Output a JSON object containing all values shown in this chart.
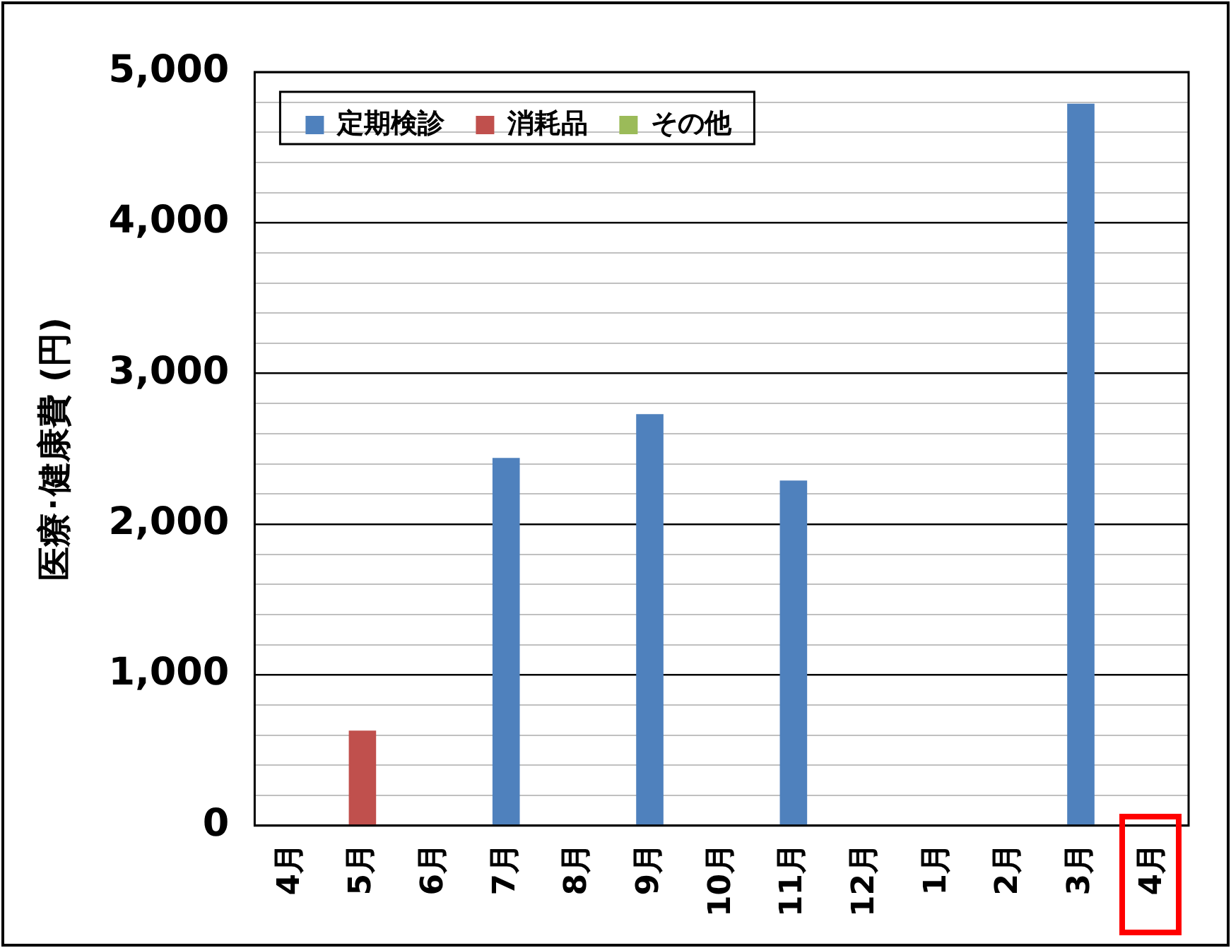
{
  "chart_data": {
    "type": "bar",
    "ylabel": "医療･健康費 (円)",
    "categories": [
      "4月",
      "5月",
      "6月",
      "7月",
      "8月",
      "9月",
      "10月",
      "11月",
      "12月",
      "1月",
      "2月",
      "3月",
      "4月"
    ],
    "series": [
      {
        "name": "定期検診",
        "color": "#4f81bd",
        "values": [
          null,
          null,
          null,
          2440,
          null,
          2730,
          null,
          2290,
          null,
          null,
          null,
          4790,
          null
        ]
      },
      {
        "name": "消耗品",
        "color": "#c0504d",
        "values": [
          null,
          630,
          null,
          null,
          null,
          null,
          null,
          null,
          null,
          null,
          null,
          null,
          null
        ]
      },
      {
        "name": "その他",
        "color": "#9bbb59",
        "values": [
          null,
          null,
          null,
          null,
          null,
          null,
          null,
          null,
          null,
          null,
          null,
          null,
          null
        ]
      }
    ],
    "stacked": true,
    "ylim": [
      0,
      5000
    ],
    "yticks": [
      0,
      {
        "value": 200,
        "label": null
      },
      {
        "value": 400,
        "label": null
      },
      {
        "value": 600,
        "label": null
      },
      {
        "value": 800,
        "label": null
      },
      {
        "value": 1000,
        "label": "1,000"
      },
      {
        "value": 1200,
        "label": null
      },
      {
        "value": 1400,
        "label": null
      },
      {
        "value": 1600,
        "label": null
      },
      {
        "value": 1800,
        "label": null
      },
      {
        "value": 2000,
        "label": "2,000"
      },
      {
        "value": 2200,
        "label": null
      },
      {
        "value": 2400,
        "label": null
      },
      {
        "value": 2600,
        "label": null
      },
      {
        "value": 2800,
        "label": null
      },
      {
        "value": 3000,
        "label": "3,000"
      },
      {
        "value": 3200,
        "label": null
      },
      {
        "value": 3400,
        "label": null
      },
      {
        "value": 3600,
        "label": null
      },
      {
        "value": 3800,
        "label": null
      },
      {
        "value": 4000,
        "label": "4,000"
      },
      {
        "value": 4200,
        "label": null
      },
      {
        "value": 4400,
        "label": null
      },
      {
        "value": 4600,
        "label": null
      },
      {
        "value": 4800,
        "label": null
      },
      {
        "value": 5000,
        "label": "5,000"
      }
    ],
    "grid": "y",
    "legend": "top left"
  }
}
